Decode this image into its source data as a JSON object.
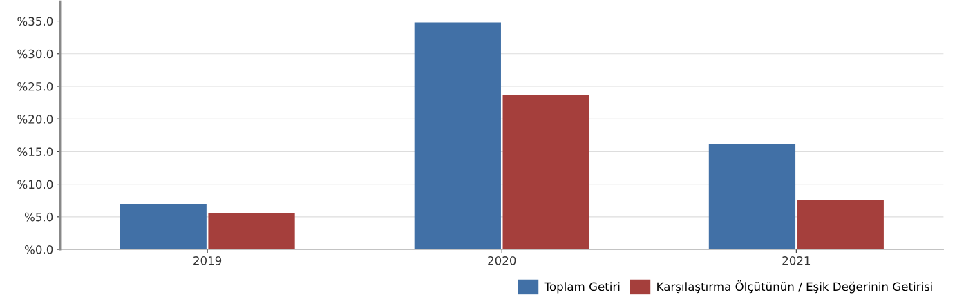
{
  "chart_data": {
    "type": "bar",
    "categories": [
      "2019",
      "2020",
      "2021"
    ],
    "series": [
      {
        "name": "Toplam Getiri",
        "color": "#4170a6",
        "values": [
          6.9,
          34.8,
          16.1
        ]
      },
      {
        "name": "Karşılaştırma Ölçütünün / Eşik Değerinin Getirisi",
        "color": "#a53f3c",
        "values": [
          5.5,
          23.7,
          7.6
        ]
      }
    ],
    "ylim": [
      0,
      38
    ],
    "yticks": [
      {
        "value": 0,
        "label": "%0.0"
      },
      {
        "value": 5,
        "label": "%5.0"
      },
      {
        "value": 10,
        "label": "%10.0"
      },
      {
        "value": 15,
        "label": "%15.0"
      },
      {
        "value": 20,
        "label": "%20.0"
      },
      {
        "value": 25,
        "label": "%25.0"
      },
      {
        "value": 30,
        "label": "%30.0"
      },
      {
        "value": 35,
        "label": "%35.0"
      }
    ],
    "grid": "y",
    "legend": "bottom right"
  }
}
